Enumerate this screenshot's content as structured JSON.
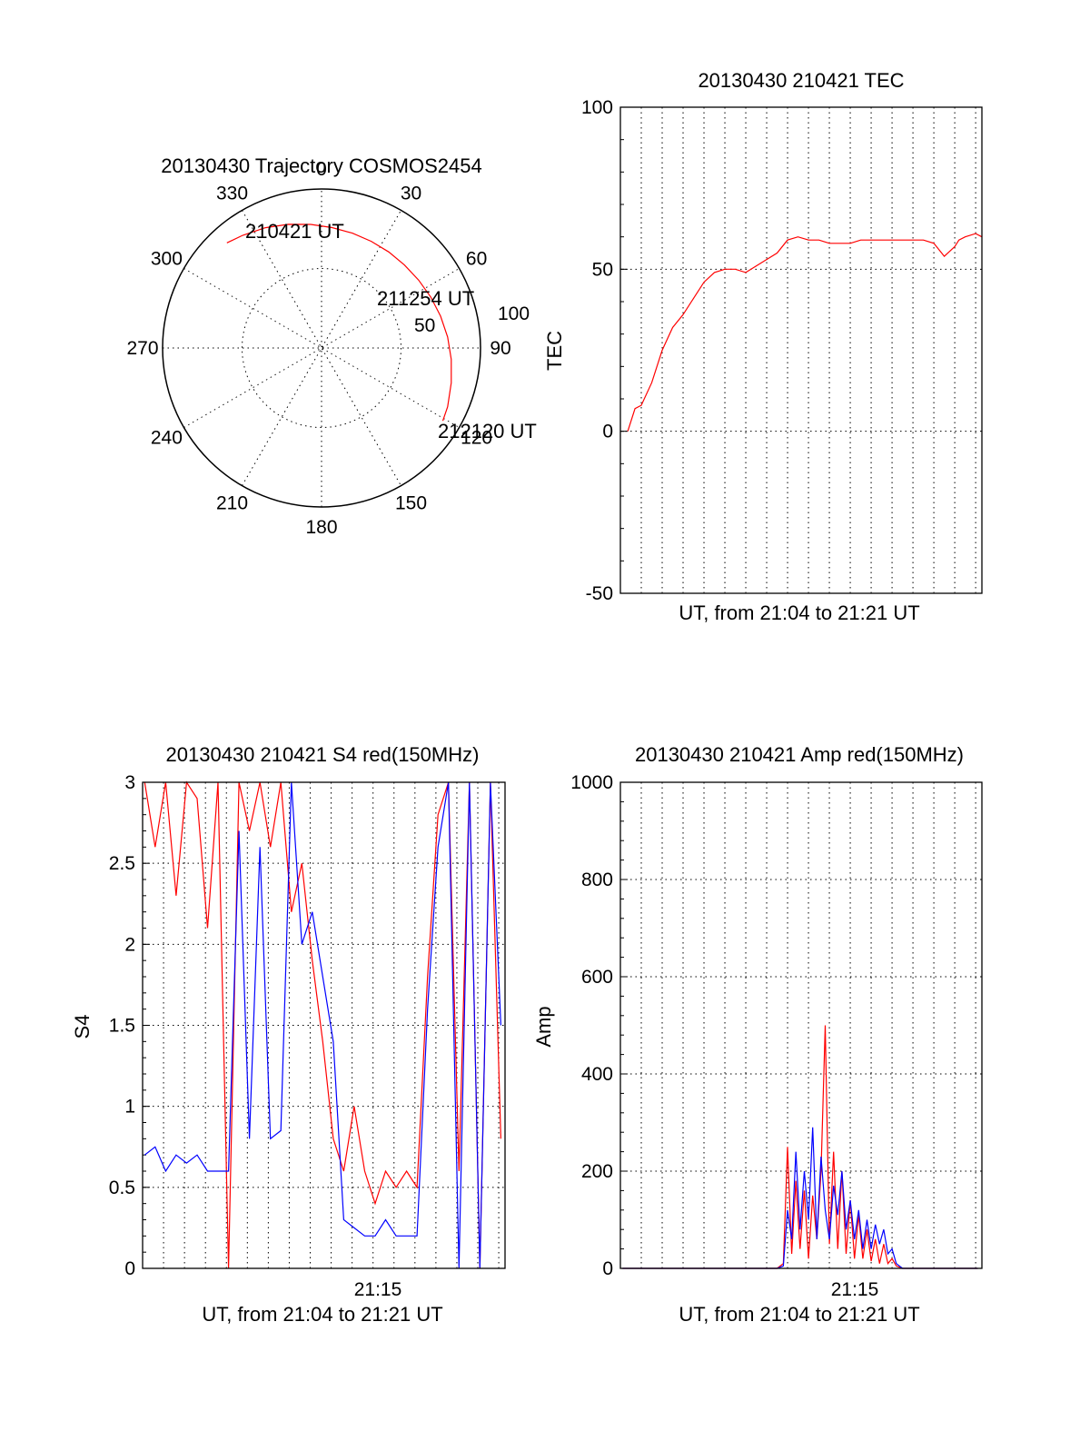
{
  "colors": {
    "red": "#ff0000",
    "blue": "#0000ff",
    "axis": "#000000"
  },
  "chart_data": [
    {
      "id": "polar",
      "type": "scatter",
      "subtype": "polar",
      "title": "20130430 Trajectory COSMOS2454",
      "angle_labels": [
        "0",
        "30",
        "60",
        "90",
        "120",
        "150",
        "180",
        "210",
        "240",
        "270",
        "300",
        "330"
      ],
      "radius_labels": [
        "50",
        "100"
      ],
      "trajectory": {
        "color": "#ff0000",
        "azimuth_deg": [
          318,
          325,
          335,
          345,
          355,
          5,
          15,
          25,
          35,
          45,
          55,
          65,
          75,
          85,
          95,
          105,
          115,
          121
        ],
        "radius": [
          89,
          86.5,
          83.5,
          80.5,
          78,
          76,
          74.8,
          74,
          73.7,
          73.8,
          74.5,
          75.8,
          77.5,
          79.6,
          81.9,
          84.5,
          87.5,
          89
        ]
      },
      "annotations": [
        "210421 UT",
        "211254 UT",
        "212120 UT"
      ]
    },
    {
      "id": "tec",
      "type": "line",
      "title": "20130430 210421 TEC",
      "xlabel": "UT, from 21:04 to 21:21 UT",
      "ylabel": "TEC",
      "ylim": [
        -50,
        100
      ],
      "yticks": [
        "100",
        "50",
        "0",
        "-50"
      ],
      "grid": true,
      "series": [
        {
          "color": "#ff0000",
          "x_minutes_after_2104": [
            0.35,
            0.7,
            1.0,
            1.5,
            2.0,
            2.5,
            3.0,
            3.5,
            4.0,
            4.5,
            5.0,
            5.5,
            6.0,
            6.5,
            7.0,
            7.5,
            8.0,
            8.5,
            9.0,
            9.5,
            10.0,
            10.5,
            11.0,
            11.5,
            12.0,
            12.5,
            13.0,
            13.5,
            14.0,
            14.5,
            15.0,
            15.5,
            16.0,
            16.2,
            16.5,
            17.0,
            17.3
          ],
          "values": [
            0,
            7,
            8,
            15,
            25,
            32,
            36,
            41,
            46,
            49,
            50,
            50,
            49,
            51,
            53,
            55,
            59,
            60,
            59,
            59,
            58,
            58,
            58,
            59,
            59,
            59,
            59,
            59,
            59,
            59,
            58,
            54,
            57,
            59,
            60,
            61,
            60
          ]
        }
      ]
    },
    {
      "id": "s4",
      "type": "line",
      "title": "20130430 210421 S4 red(150MHz)",
      "xlabel": "UT, from 21:04 to 21:21 UT",
      "ylabel": "S4",
      "ylim": [
        0,
        3
      ],
      "yticks": [
        "3",
        "2.5",
        "2",
        "1.5",
        "1",
        "0.5",
        "0"
      ],
      "xtick_label": "21:15",
      "grid": true,
      "series": [
        {
          "color": "#ff0000",
          "x_minutes_after_2104": [
            0.1,
            0.6,
            1.1,
            1.6,
            2.1,
            2.6,
            3.1,
            3.6,
            4.1,
            4.6,
            5.1,
            5.6,
            6.1,
            6.6,
            7.1,
            7.6,
            8.1,
            8.6,
            9.1,
            9.6,
            10.1,
            10.6,
            11.1,
            11.6,
            12.1,
            12.6,
            13.1,
            13.6,
            14.1,
            14.6,
            15.1,
            15.6,
            16.1,
            16.6,
            17.1
          ],
          "values": [
            3,
            2.6,
            3,
            2.3,
            3,
            2.9,
            2.1,
            3,
            0,
            3,
            2.7,
            3,
            2.6,
            3,
            2.2,
            2.5,
            1.9,
            1.4,
            0.8,
            0.6,
            1.0,
            0.6,
            0.4,
            0.6,
            0.5,
            0.6,
            0.5,
            1.8,
            2.8,
            3,
            0.6,
            3,
            0,
            3,
            0.8
          ]
        },
        {
          "color": "#0000ff",
          "x_minutes_after_2104": [
            0.1,
            0.6,
            1.1,
            1.6,
            2.1,
            2.6,
            3.1,
            3.6,
            4.1,
            4.6,
            5.1,
            5.6,
            6.1,
            6.6,
            7.1,
            7.6,
            8.1,
            8.6,
            9.1,
            9.6,
            10.1,
            10.6,
            11.1,
            11.6,
            12.1,
            12.6,
            13.1,
            13.6,
            14.1,
            14.6,
            15.1,
            15.6,
            16.1,
            16.6,
            17.1
          ],
          "values": [
            0.7,
            0.75,
            0.6,
            0.7,
            0.65,
            0.7,
            0.6,
            0.6,
            0.6,
            2.7,
            0.8,
            2.6,
            0.8,
            0.85,
            3,
            2.0,
            2.2,
            1.8,
            1.4,
            0.3,
            0.25,
            0.2,
            0.2,
            0.3,
            0.2,
            0.2,
            0.2,
            1.6,
            2.6,
            3,
            0,
            3,
            0,
            3,
            1.5
          ]
        }
      ]
    },
    {
      "id": "amp",
      "type": "line",
      "title": "20130430 210421 Amp red(150MHz)",
      "xlabel": "UT, from 21:04 to 21:21 UT",
      "ylabel": "Amp",
      "ylim": [
        0,
        1000
      ],
      "yticks": [
        "1000",
        "800",
        "600",
        "400",
        "200",
        "0"
      ],
      "xtick_label": "21:15",
      "grid": true,
      "series": [
        {
          "color": "#ff0000",
          "x_minutes_after_2104": [
            0.1,
            7.5,
            7.8,
            8.0,
            8.2,
            8.4,
            8.6,
            8.8,
            9.0,
            9.2,
            9.4,
            9.6,
            9.8,
            10.0,
            10.2,
            10.4,
            10.6,
            10.8,
            11.0,
            11.2,
            11.4,
            11.6,
            11.8,
            12.0,
            12.2,
            12.4,
            12.6,
            12.8,
            13.0,
            13.2,
            13.5,
            14.0,
            17.1
          ],
          "values": [
            0,
            0,
            10,
            250,
            30,
            180,
            40,
            160,
            20,
            150,
            60,
            200,
            500,
            50,
            240,
            40,
            200,
            30,
            140,
            20,
            110,
            20,
            80,
            15,
            60,
            10,
            50,
            10,
            20,
            5,
            0,
            0,
            0
          ]
        },
        {
          "color": "#0000ff",
          "x_minutes_after_2104": [
            0.1,
            7.5,
            7.8,
            8.0,
            8.2,
            8.4,
            8.6,
            8.8,
            9.0,
            9.2,
            9.4,
            9.6,
            9.8,
            10.0,
            10.2,
            10.4,
            10.6,
            10.8,
            11.0,
            11.2,
            11.4,
            11.6,
            11.8,
            12.0,
            12.2,
            12.4,
            12.6,
            12.8,
            13.0,
            13.2,
            13.5,
            14.0,
            17.1
          ],
          "values": [
            0,
            0,
            5,
            120,
            60,
            240,
            80,
            200,
            100,
            290,
            60,
            230,
            120,
            60,
            170,
            110,
            200,
            80,
            140,
            60,
            120,
            40,
            100,
            40,
            90,
            50,
            80,
            30,
            40,
            10,
            0,
            0,
            0
          ]
        }
      ]
    }
  ]
}
